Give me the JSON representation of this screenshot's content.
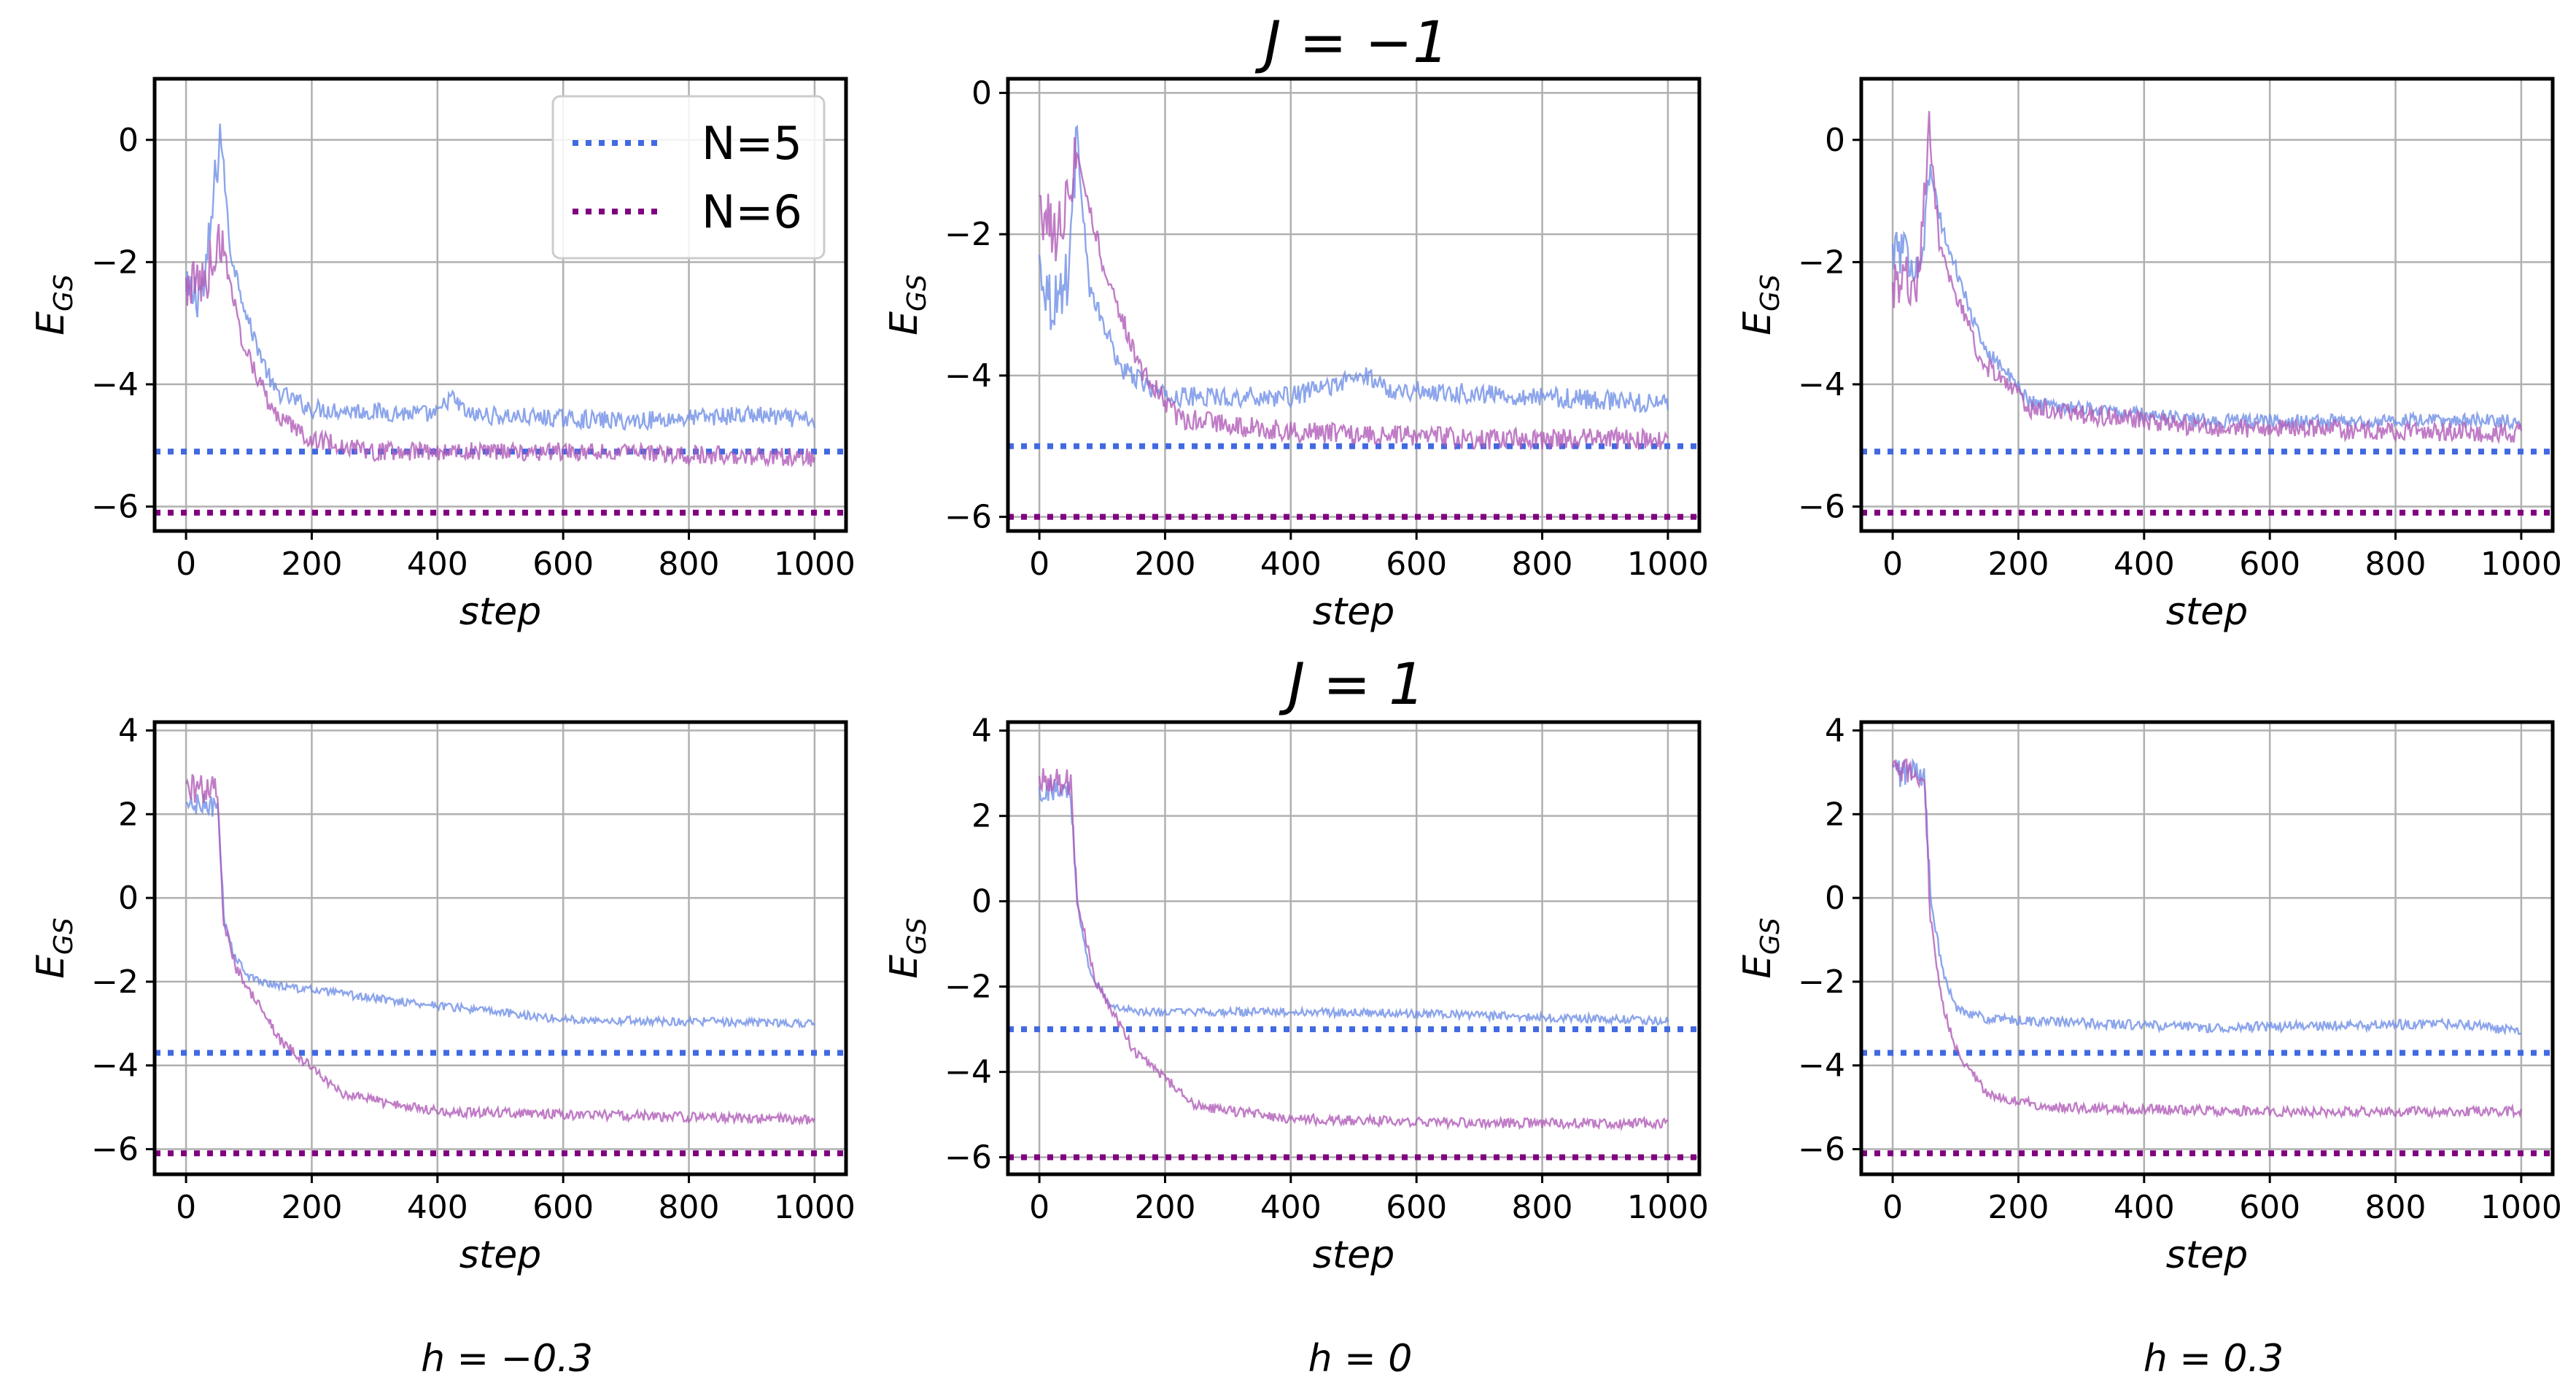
{
  "colors": {
    "n5_line": "#6f8fe6",
    "n5_ref": "#4169e1",
    "n6_line": "#b05bb8",
    "n6_ref": "#800080",
    "grid": "#b0b0b0"
  },
  "legend": {
    "location": "upper right of first panel",
    "items": [
      {
        "label": "N=5",
        "color": "#4169e1",
        "style": "dotted"
      },
      {
        "label": "N=6",
        "color": "#800080",
        "style": "dotted"
      }
    ]
  },
  "row_titles": [
    "J = −1",
    "J = 1"
  ],
  "column_labels": [
    "h = −0.3",
    "h = 0",
    "h = 0.3"
  ],
  "chart_data": [
    {
      "type": "line",
      "row": 0,
      "col": 0,
      "xlabel": "step",
      "ylabel": "E_GS",
      "xlim": [
        -50,
        1050
      ],
      "ylim": [
        -6.4,
        1.0
      ],
      "xticks": [
        0,
        200,
        400,
        600,
        800,
        1000
      ],
      "yticks": [
        0,
        -2,
        -4,
        -6
      ],
      "grid": true,
      "series": [
        {
          "name": "N=5",
          "reference": -5.1,
          "noise": 0.15,
          "trend": [
            [
              0,
              -2.6
            ],
            [
              30,
              -2.4
            ],
            [
              55,
              0.2
            ],
            [
              70,
              -1.8
            ],
            [
              100,
              -3.0
            ],
            [
              140,
              -4.1
            ],
            [
              200,
              -4.4
            ],
            [
              400,
              -4.5
            ],
            [
              420,
              -4.2
            ],
            [
              450,
              -4.5
            ],
            [
              700,
              -4.6
            ],
            [
              900,
              -4.5
            ],
            [
              1000,
              -4.6
            ]
          ]
        },
        {
          "name": "N=6",
          "reference": -6.1,
          "noise": 0.15,
          "trend": [
            [
              0,
              -2.4
            ],
            [
              30,
              -2.3
            ],
            [
              55,
              -1.6
            ],
            [
              90,
              -3.3
            ],
            [
              140,
              -4.5
            ],
            [
              200,
              -4.9
            ],
            [
              300,
              -5.1
            ],
            [
              600,
              -5.1
            ],
            [
              1000,
              -5.2
            ]
          ]
        }
      ]
    },
    {
      "type": "line",
      "row": 0,
      "col": 1,
      "xlabel": "step",
      "ylabel": "E_GS",
      "xlim": [
        -50,
        1050
      ],
      "ylim": [
        -6.2,
        0.2
      ],
      "xticks": [
        0,
        200,
        400,
        600,
        800,
        1000
      ],
      "yticks": [
        0,
        -2,
        -4,
        -6
      ],
      "grid": true,
      "series": [
        {
          "name": "N=5",
          "reference": -5.0,
          "noise": 0.14,
          "trend": [
            [
              0,
              -2.4
            ],
            [
              20,
              -3.0
            ],
            [
              45,
              -2.6
            ],
            [
              60,
              -0.6
            ],
            [
              80,
              -2.8
            ],
            [
              130,
              -3.9
            ],
            [
              200,
              -4.3
            ],
            [
              400,
              -4.3
            ],
            [
              520,
              -4.0
            ],
            [
              560,
              -4.2
            ],
            [
              800,
              -4.3
            ],
            [
              1000,
              -4.4
            ]
          ]
        },
        {
          "name": "N=6",
          "reference": -6.0,
          "noise": 0.15,
          "trend": [
            [
              0,
              -1.6
            ],
            [
              30,
              -2.0
            ],
            [
              60,
              -0.8
            ],
            [
              100,
              -2.4
            ],
            [
              160,
              -3.9
            ],
            [
              220,
              -4.6
            ],
            [
              400,
              -4.8
            ],
            [
              700,
              -4.9
            ],
            [
              1000,
              -4.9
            ]
          ]
        }
      ]
    },
    {
      "type": "line",
      "row": 0,
      "col": 2,
      "xlabel": "step",
      "ylabel": "E_GS",
      "xlim": [
        -50,
        1050
      ],
      "ylim": [
        -6.4,
        1.0
      ],
      "xticks": [
        0,
        200,
        400,
        600,
        800,
        1000
      ],
      "yticks": [
        0,
        -2,
        -4,
        -6
      ],
      "grid": true,
      "series": [
        {
          "name": "N=5",
          "reference": -5.1,
          "noise": 0.12,
          "trend": [
            [
              0,
              -1.8
            ],
            [
              45,
              -2.0
            ],
            [
              60,
              -0.5
            ],
            [
              80,
              -1.5
            ],
            [
              140,
              -3.3
            ],
            [
              220,
              -4.3
            ],
            [
              500,
              -4.6
            ],
            [
              1000,
              -4.6
            ]
          ]
        },
        {
          "name": "N=6",
          "reference": -6.1,
          "noise": 0.16,
          "trend": [
            [
              0,
              -2.5
            ],
            [
              40,
              -2.3
            ],
            [
              58,
              0.2
            ],
            [
              75,
              -1.8
            ],
            [
              140,
              -3.6
            ],
            [
              220,
              -4.4
            ],
            [
              500,
              -4.7
            ],
            [
              1000,
              -4.8
            ]
          ]
        }
      ]
    },
    {
      "type": "line",
      "row": 1,
      "col": 0,
      "xlabel": "step",
      "ylabel": "E_GS",
      "xlim": [
        -50,
        1050
      ],
      "ylim": [
        -6.6,
        4.2
      ],
      "xticks": [
        0,
        200,
        400,
        600,
        800,
        1000
      ],
      "yticks": [
        4,
        2,
        0,
        -2,
        -4,
        -6
      ],
      "grid": true,
      "series": [
        {
          "name": "N=5",
          "reference": -3.7,
          "noise": 0.1,
          "trend": [
            [
              0,
              2.2
            ],
            [
              50,
              2.2
            ],
            [
              60,
              -0.5
            ],
            [
              75,
              -1.3
            ],
            [
              100,
              -1.9
            ],
            [
              150,
              -2.1
            ],
            [
              300,
              -2.4
            ],
            [
              600,
              -2.9
            ],
            [
              1000,
              -3.0
            ]
          ]
        },
        {
          "name": "N=6",
          "reference": -6.1,
          "noise": 0.12,
          "trend": [
            [
              0,
              2.6
            ],
            [
              50,
              2.6
            ],
            [
              60,
              -0.6
            ],
            [
              80,
              -1.7
            ],
            [
              150,
              -3.4
            ],
            [
              250,
              -4.7
            ],
            [
              400,
              -5.1
            ],
            [
              700,
              -5.2
            ],
            [
              1000,
              -5.3
            ]
          ]
        }
      ]
    },
    {
      "type": "line",
      "row": 1,
      "col": 1,
      "xlabel": "step",
      "ylabel": "E_GS",
      "xlim": [
        -50,
        1050
      ],
      "ylim": [
        -6.4,
        4.2
      ],
      "xticks": [
        0,
        200,
        400,
        600,
        800,
        1000
      ],
      "yticks": [
        4,
        2,
        0,
        -2,
        -4,
        -6
      ],
      "grid": true,
      "series": [
        {
          "name": "N=5",
          "reference": -3.0,
          "noise": 0.1,
          "trend": [
            [
              0,
              2.6
            ],
            [
              50,
              2.6
            ],
            [
              60,
              0.0
            ],
            [
              80,
              -1.6
            ],
            [
              110,
              -2.4
            ],
            [
              150,
              -2.6
            ],
            [
              500,
              -2.6
            ],
            [
              1000,
              -2.8
            ]
          ]
        },
        {
          "name": "N=6",
          "reference": -6.0,
          "noise": 0.12,
          "trend": [
            [
              0,
              2.8
            ],
            [
              50,
              2.8
            ],
            [
              60,
              0.0
            ],
            [
              90,
              -1.9
            ],
            [
              150,
              -3.5
            ],
            [
              250,
              -4.8
            ],
            [
              400,
              -5.1
            ],
            [
              700,
              -5.2
            ],
            [
              1000,
              -5.2
            ]
          ]
        }
      ]
    },
    {
      "type": "line",
      "row": 1,
      "col": 2,
      "xlabel": "step",
      "ylabel": "E_GS",
      "xlim": [
        -50,
        1050
      ],
      "ylim": [
        -6.6,
        4.2
      ],
      "xticks": [
        0,
        200,
        400,
        600,
        800,
        1000
      ],
      "yticks": [
        4,
        2,
        0,
        -2,
        -4,
        -6
      ],
      "grid": true,
      "series": [
        {
          "name": "N=5",
          "reference": -3.7,
          "noise": 0.12,
          "trend": [
            [
              0,
              3.0
            ],
            [
              50,
              3.0
            ],
            [
              60,
              0.0
            ],
            [
              80,
              -1.8
            ],
            [
              100,
              -2.6
            ],
            [
              150,
              -2.9
            ],
            [
              500,
              -3.1
            ],
            [
              900,
              -3.0
            ],
            [
              1000,
              -3.2
            ]
          ]
        },
        {
          "name": "N=6",
          "reference": -6.1,
          "noise": 0.12,
          "trend": [
            [
              0,
              3.0
            ],
            [
              50,
              3.0
            ],
            [
              60,
              -0.5
            ],
            [
              80,
              -2.6
            ],
            [
              100,
              -3.6
            ],
            [
              150,
              -4.7
            ],
            [
              250,
              -5.0
            ],
            [
              600,
              -5.1
            ],
            [
              1000,
              -5.1
            ]
          ]
        }
      ]
    }
  ]
}
